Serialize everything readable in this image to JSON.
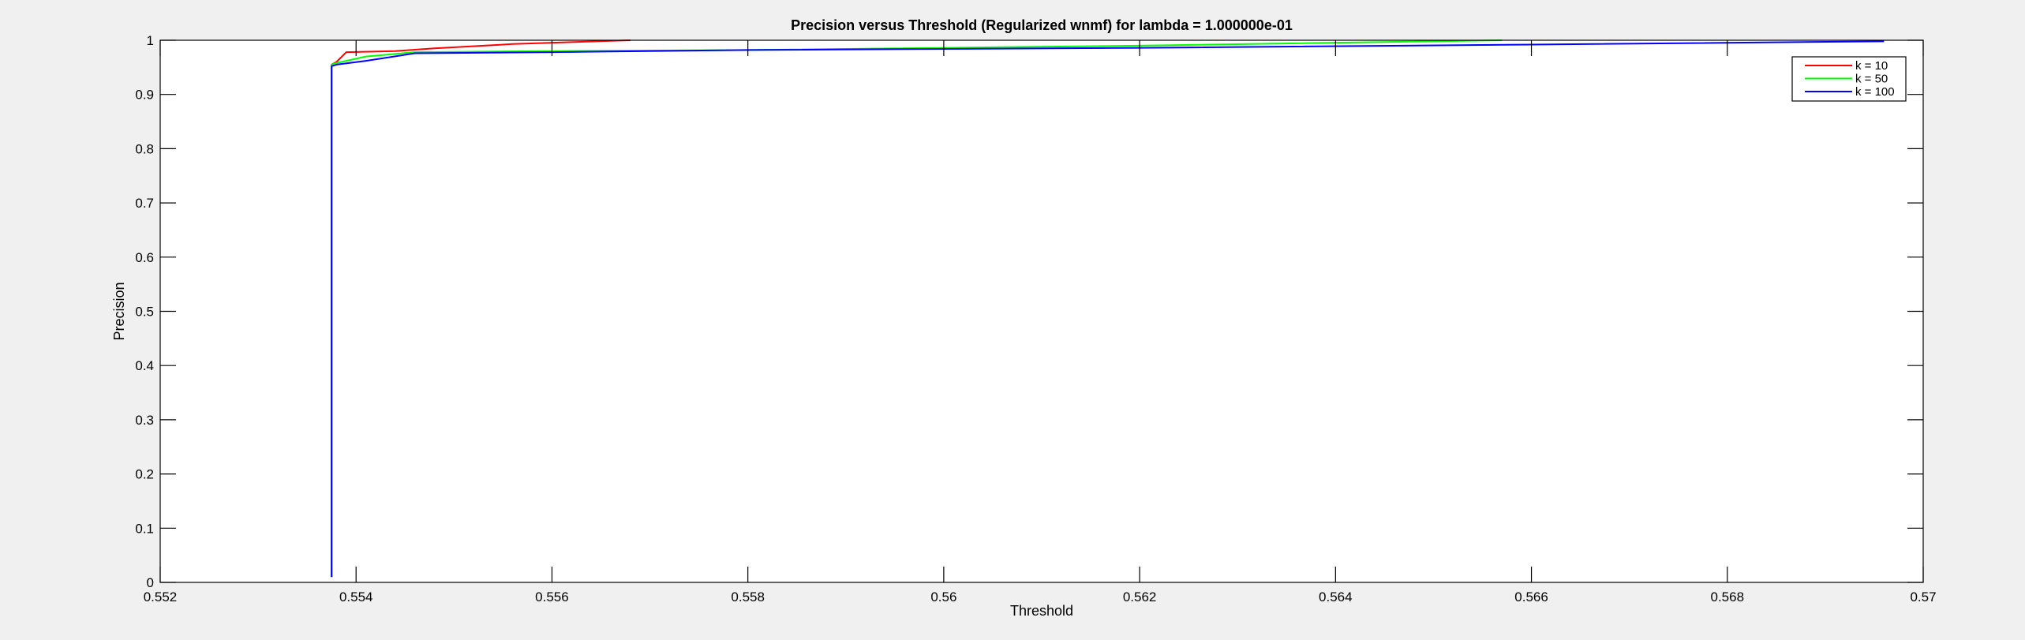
{
  "chart_data": {
    "type": "line",
    "title": "Precision versus Threshold (Regularized wnmf) for lambda = 1.000000e-01",
    "xlabel": "Threshold",
    "ylabel": "Precision",
    "xlim": [
      0.552,
      0.57
    ],
    "ylim": [
      0,
      1
    ],
    "xticks": [
      0.552,
      0.554,
      0.556,
      0.558,
      0.56,
      0.562,
      0.564,
      0.566,
      0.568,
      0.57
    ],
    "xtick_labels": [
      "0.552",
      "0.554",
      "0.556",
      "0.558",
      "0.56",
      "0.562",
      "0.564",
      "0.566",
      "0.568",
      "0.57"
    ],
    "yticks": [
      0,
      0.1,
      0.2,
      0.3,
      0.4,
      0.5,
      0.6,
      0.7,
      0.8,
      0.9,
      1
    ],
    "ytick_labels": [
      "0",
      "0.1",
      "0.2",
      "0.3",
      "0.4",
      "0.5",
      "0.6",
      "0.7",
      "0.8",
      "0.9",
      "1"
    ],
    "grid": false,
    "legend_position": "top-right",
    "series": [
      {
        "name": "k = 10",
        "color": "#ff0000",
        "x": [
          0.55375,
          0.55375,
          0.5538,
          0.5539,
          0.5544,
          0.5548,
          0.5556,
          0.5568
        ],
        "y": [
          0.01,
          0.955,
          0.96,
          0.978,
          0.98,
          0.985,
          0.993,
          1.0
        ]
      },
      {
        "name": "k = 50",
        "color": "#00ff00",
        "x": [
          0.55375,
          0.55375,
          0.5538,
          0.5541,
          0.5546,
          0.556,
          0.558,
          0.562,
          0.5657
        ],
        "y": [
          0.01,
          0.955,
          0.958,
          0.97,
          0.978,
          0.98,
          0.982,
          0.99,
          1.0
        ]
      },
      {
        "name": "k = 100",
        "color": "#0000ff",
        "x": [
          0.55375,
          0.55375,
          0.5538,
          0.5541,
          0.5546,
          0.556,
          0.558,
          0.562,
          0.566,
          0.5696
        ],
        "y": [
          0.01,
          0.952,
          0.955,
          0.962,
          0.976,
          0.978,
          0.982,
          0.986,
          0.992,
          0.998
        ]
      }
    ]
  }
}
